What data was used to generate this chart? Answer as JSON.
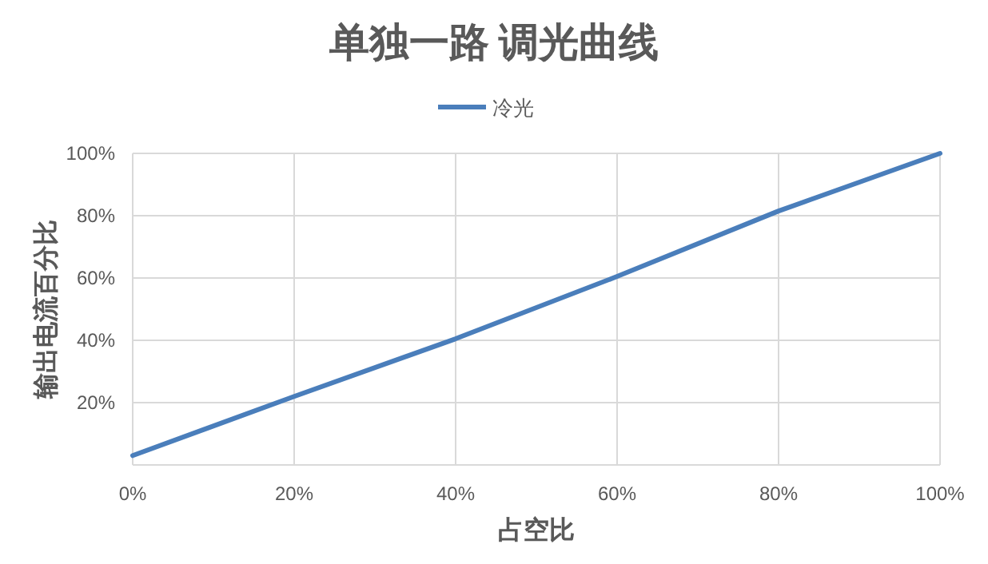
{
  "chart_data": {
    "type": "line",
    "title": "单独一路 调光曲线",
    "xlabel": "占空比",
    "ylabel": "输出电流百分比",
    "x": [
      0,
      20,
      40,
      60,
      80,
      100
    ],
    "series": [
      {
        "name": "冷光",
        "color": "#4a7ebb",
        "values": [
          3,
          22,
          40.5,
          60.5,
          81.5,
          100
        ]
      }
    ],
    "xlim": [
      0,
      100
    ],
    "ylim": [
      0,
      100
    ],
    "xticks": [
      {
        "value": 0,
        "label": "0%"
      },
      {
        "value": 20,
        "label": "20%"
      },
      {
        "value": 40,
        "label": "40%"
      },
      {
        "value": 60,
        "label": "60%"
      },
      {
        "value": 80,
        "label": "80%"
      },
      {
        "value": 100,
        "label": "100%"
      }
    ],
    "yticks": [
      {
        "value": 0,
        "label": null
      },
      {
        "value": 20,
        "label": "20%"
      },
      {
        "value": 40,
        "label": "40%"
      },
      {
        "value": 60,
        "label": "60%"
      },
      {
        "value": 80,
        "label": "80%"
      },
      {
        "value": 100,
        "label": "100%"
      }
    ],
    "grid": true,
    "legend": "top",
    "marker": "none",
    "line_style": "solid"
  }
}
